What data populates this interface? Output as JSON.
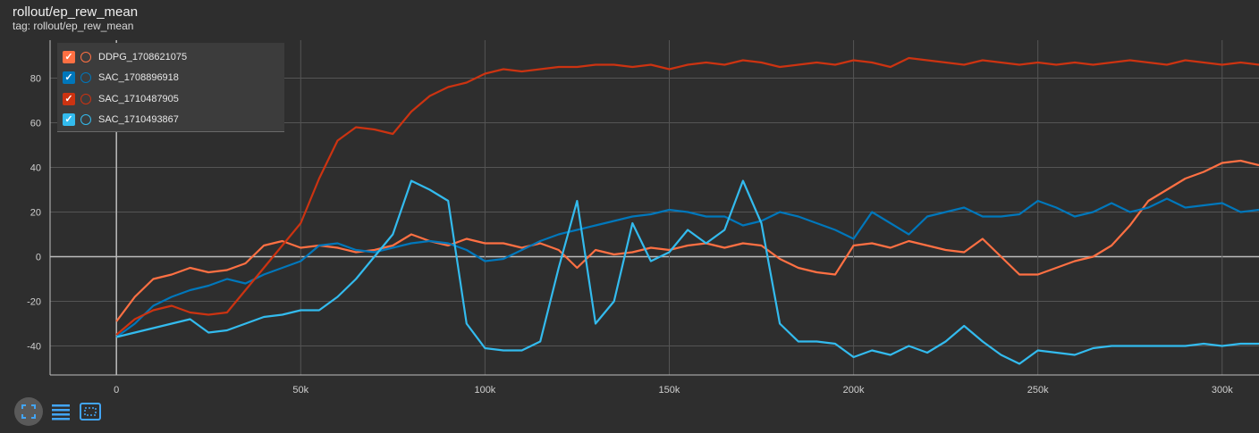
{
  "header": {
    "title": "rollout/ep_rew_mean",
    "tag": "tag: rollout/ep_rew_mean"
  },
  "legend": [
    {
      "name": "DDPG_1708621075",
      "color": "#ff7043",
      "checked": true
    },
    {
      "name": "SAC_1708896918",
      "color": "#0077bb",
      "checked": true
    },
    {
      "name": "SAC_1710487905",
      "color": "#cc3311",
      "checked": true
    },
    {
      "name": "SAC_1710493867",
      "color": "#33bbee",
      "checked": true
    }
  ],
  "colors": {
    "background": "#2e2e2e",
    "grid": "#555555",
    "axis": "#bdbdbd",
    "text": "#e0e0e0"
  },
  "toolbar": {
    "fit_icon": "fit-domain-icon",
    "log_icon": "line-list-icon",
    "box_icon": "box-zoom-icon"
  },
  "chart_data": {
    "type": "line",
    "title": "rollout/ep_rew_mean",
    "xlabel": "",
    "ylabel": "",
    "xlim": [
      -18000,
      310000
    ],
    "ylim": [
      -53,
      97
    ],
    "xticks": [
      0,
      50000,
      100000,
      150000,
      200000,
      250000,
      300000
    ],
    "xtick_labels": [
      "0",
      "50k",
      "100k",
      "150k",
      "200k",
      "250k",
      "300k"
    ],
    "yticks": [
      -40,
      -20,
      0,
      20,
      40,
      60,
      80
    ],
    "ytick_labels": [
      "-40",
      "-20",
      "0",
      "20",
      "40",
      "60",
      "80"
    ],
    "series": [
      {
        "name": "DDPG_1708621075",
        "color": "#ff7043",
        "x": [
          0,
          5000,
          10000,
          15000,
          20000,
          25000,
          30000,
          35000,
          40000,
          45000,
          50000,
          55000,
          60000,
          65000,
          70000,
          75000,
          80000,
          85000,
          90000,
          95000,
          100000,
          105000,
          110000,
          115000,
          120000,
          125000,
          130000,
          135000,
          140000,
          145000,
          150000,
          155000,
          160000,
          165000,
          170000,
          175000,
          180000,
          185000,
          190000,
          195000,
          200000,
          205000,
          210000,
          215000,
          220000,
          225000,
          230000,
          235000,
          240000,
          245000,
          250000,
          255000,
          260000,
          265000,
          270000,
          275000,
          280000,
          285000,
          290000,
          295000,
          300000,
          305000,
          310000
        ],
        "y": [
          -29,
          -18,
          -10,
          -8,
          -5,
          -7,
          -6,
          -3,
          5,
          7,
          4,
          5,
          4,
          2,
          3,
          5,
          10,
          7,
          5,
          8,
          6,
          6,
          4,
          6,
          3,
          -5,
          3,
          1,
          2,
          4,
          3,
          5,
          6,
          4,
          6,
          5,
          -1,
          -5,
          -7,
          -8,
          5,
          6,
          4,
          7,
          5,
          3,
          2,
          8,
          0,
          -8,
          -8,
          -5,
          -2,
          0,
          5,
          14,
          25,
          30,
          35,
          38,
          42,
          43,
          41
        ]
      },
      {
        "name": "SAC_1708896918",
        "color": "#0077bb",
        "x": [
          0,
          5000,
          10000,
          15000,
          20000,
          25000,
          30000,
          35000,
          40000,
          45000,
          50000,
          55000,
          60000,
          65000,
          70000,
          75000,
          80000,
          85000,
          90000,
          95000,
          100000,
          105000,
          110000,
          115000,
          120000,
          125000,
          130000,
          135000,
          140000,
          145000,
          150000,
          155000,
          160000,
          165000,
          170000,
          175000,
          180000,
          185000,
          190000,
          195000,
          200000,
          205000,
          210000,
          215000,
          220000,
          225000,
          230000,
          235000,
          240000,
          245000,
          250000,
          255000,
          260000,
          265000,
          270000,
          275000,
          280000,
          285000,
          290000,
          295000,
          300000,
          305000,
          310000
        ],
        "y": [
          -36,
          -30,
          -22,
          -18,
          -15,
          -13,
          -10,
          -12,
          -8,
          -5,
          -2,
          5,
          6,
          3,
          2,
          4,
          6,
          7,
          6,
          3,
          -2,
          -1,
          3,
          7,
          10,
          12,
          14,
          16,
          18,
          19,
          21,
          20,
          18,
          18,
          14,
          16,
          20,
          18,
          15,
          12,
          8,
          20,
          15,
          10,
          18,
          20,
          22,
          18,
          18,
          19,
          25,
          22,
          18,
          20,
          24,
          20,
          22,
          26,
          22,
          23,
          24,
          20,
          21
        ]
      },
      {
        "name": "SAC_1710487905",
        "color": "#cc3311",
        "x": [
          0,
          5000,
          10000,
          15000,
          20000,
          25000,
          30000,
          35000,
          40000,
          45000,
          50000,
          55000,
          60000,
          65000,
          70000,
          75000,
          80000,
          85000,
          90000,
          95000,
          100000,
          105000,
          110000,
          115000,
          120000,
          125000,
          130000,
          135000,
          140000,
          145000,
          150000,
          155000,
          160000,
          165000,
          170000,
          175000,
          180000,
          185000,
          190000,
          195000,
          200000,
          205000,
          210000,
          215000,
          220000,
          225000,
          230000,
          235000,
          240000,
          245000,
          250000,
          255000,
          260000,
          265000,
          270000,
          275000,
          280000,
          285000,
          290000,
          295000,
          300000,
          305000,
          310000
        ],
        "y": [
          -35,
          -28,
          -24,
          -22,
          -25,
          -26,
          -25,
          -15,
          -5,
          5,
          15,
          35,
          52,
          58,
          57,
          55,
          65,
          72,
          76,
          78,
          82,
          84,
          83,
          84,
          85,
          85,
          86,
          86,
          85,
          86,
          84,
          86,
          87,
          86,
          88,
          87,
          85,
          86,
          87,
          86,
          88,
          87,
          85,
          89,
          88,
          87,
          86,
          88,
          87,
          86,
          87,
          86,
          87,
          86,
          87,
          88,
          87,
          86,
          88,
          87,
          86,
          87,
          86
        ]
      },
      {
        "name": "SAC_1710493867",
        "color": "#33bbee",
        "x": [
          0,
          5000,
          10000,
          15000,
          20000,
          25000,
          30000,
          35000,
          40000,
          45000,
          50000,
          55000,
          60000,
          65000,
          70000,
          75000,
          80000,
          85000,
          90000,
          95000,
          100000,
          105000,
          110000,
          115000,
          120000,
          125000,
          130000,
          135000,
          140000,
          145000,
          150000,
          155000,
          160000,
          165000,
          170000,
          175000,
          180000,
          185000,
          190000,
          195000,
          200000,
          205000,
          210000,
          215000,
          220000,
          225000,
          230000,
          235000,
          240000,
          245000,
          250000,
          255000,
          260000,
          265000,
          270000,
          275000,
          280000,
          285000,
          290000,
          295000,
          300000,
          305000,
          310000
        ],
        "y": [
          -36,
          -34,
          -32,
          -30,
          -28,
          -34,
          -33,
          -30,
          -27,
          -26,
          -24,
          -24,
          -18,
          -10,
          0,
          10,
          34,
          30,
          25,
          -30,
          -41,
          -42,
          -42,
          -38,
          -5,
          25,
          -30,
          -20,
          15,
          -2,
          2,
          12,
          6,
          12,
          34,
          15,
          -30,
          -38,
          -38,
          -39,
          -45,
          -42,
          -44,
          -40,
          -43,
          -38,
          -31,
          -38,
          -44,
          -48,
          -42,
          -43,
          -44,
          -41,
          -40,
          -40,
          -40,
          -40,
          -40,
          -39,
          -40,
          -39,
          -39
        ]
      }
    ]
  }
}
